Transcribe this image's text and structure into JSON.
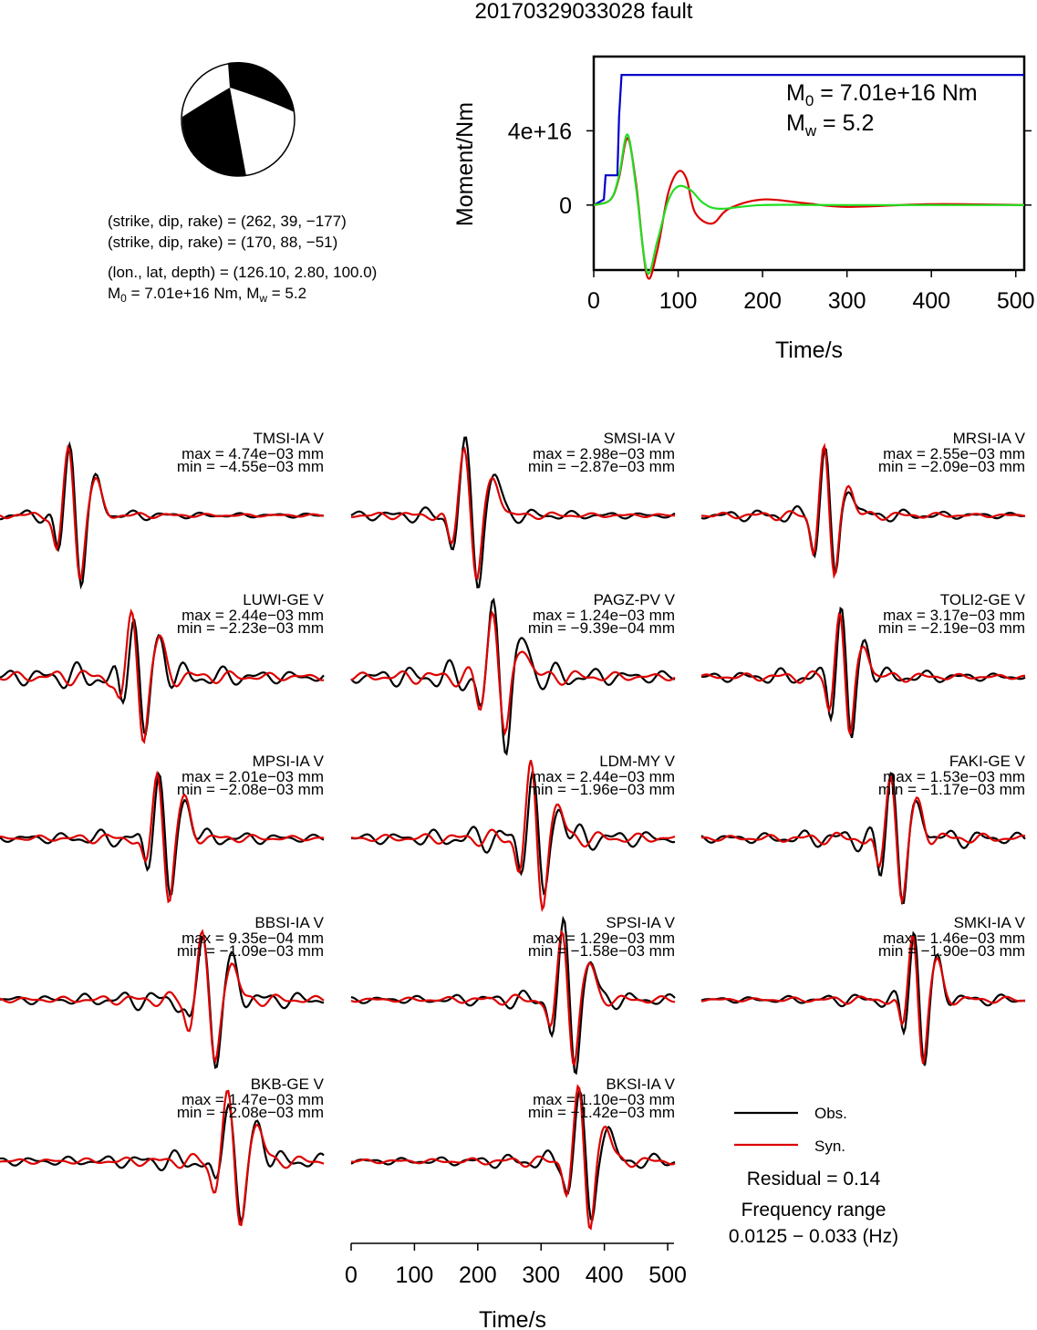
{
  "title": "20170329033028 fault",
  "beachball": {
    "line1": "(strike, dip, rake) = (262, 39, −177)",
    "line2": "(strike, dip, rake) = (170, 88, −51)",
    "line3": "(lon., lat, depth) = (126.10, 2.80, 100.0)",
    "line4_pre": "M",
    "line4_sub": "0",
    "line4_post": " = 7.01e+16 Nm, M",
    "line4_sub2": "w",
    "line4_end": " = 5.2"
  },
  "moment_chart": {
    "ylabel": "Moment/Nm",
    "xlabel": "Time/s",
    "annotation_m0_pre": "M",
    "annotation_m0_sub": "0",
    "annotation_m0_post": " = 7.01e+16 Nm",
    "annotation_mw_pre": "M",
    "annotation_mw_sub": "w",
    "annotation_mw_post": " = 5.2",
    "yticks": [
      "0",
      "4e+16"
    ],
    "xticks": [
      "0",
      "100",
      "200",
      "300",
      "400",
      "500"
    ],
    "colors": {
      "cumulative": "#0000cc",
      "rate_obs": "#dd0000",
      "rate_model": "#22dd22"
    }
  },
  "chart_data": [
    {
      "type": "line",
      "title": "",
      "xlabel": "Time/s",
      "ylabel": "Moment/Nm",
      "xlim": [
        0,
        510
      ],
      "ylim": [
        -3.5e+16,
        8e+16
      ],
      "series": [
        {
          "x": [
            0,
            12,
            14,
            28,
            30,
            33,
            510
          ],
          "y": [
            0,
            3000000000000000.0,
            1.6e+16,
            1.6e+16,
            4.8e+16,
            7.01e+16,
            7.01e+16
          ]
        },
        {
          "x": [
            0,
            20,
            30,
            40,
            50,
            63,
            75,
            88,
            100,
            110,
            120,
            140,
            160,
            200,
            250,
            300,
            400,
            510
          ],
          "y": [
            0,
            3000000000000000.0,
            1.5e+16,
            3.6e+16,
            1.2e+16,
            -3.8e+16,
            -2.5e+16,
            6000000000000000.0,
            1.8e+16,
            1.4e+16,
            -4000000000000000.0,
            -1e+16,
            -2000000000000000.0,
            3000000000000000.0,
            1000000000000000.0,
            -1000000000000000.0,
            500000000000000.0,
            0
          ]
        },
        {
          "x": [
            0,
            20,
            30,
            40,
            50,
            63,
            75,
            88,
            100,
            115,
            130,
            150,
            200,
            300,
            510
          ],
          "y": [
            0,
            3000000000000000.0,
            1.6e+16,
            3.8e+16,
            1e+16,
            -3.6e+16,
            -2e+16,
            2000000000000000.0,
            1e+16,
            8000000000000000.0,
            1000000000000000.0,
            -2000000000000000.0,
            0,
            0,
            0
          ]
        }
      ]
    },
    {
      "type": "line",
      "xlabel": "Time/s",
      "xlim": [
        0,
        510
      ],
      "series": [
        {
          "name": "Obs.",
          "color": "#000000"
        },
        {
          "name": "Syn.",
          "color": "#dd0000"
        }
      ]
    }
  ],
  "waveforms": [
    {
      "name": "TMSI-IA V",
      "max": "max = 4.74e−03 mm",
      "min": "min = −4.55e−03 mm",
      "peak": 110,
      "sd": 20,
      "pre": 0.6,
      "post": 0.5,
      "noise": 0.08
    },
    {
      "name": "SMSI-IA V",
      "max": "max = 2.98e−03 mm",
      "min": "min = −2.87e−03 mm",
      "peak": 180,
      "sd": 22,
      "pre": 0.5,
      "post": 0.55,
      "noise": 0.1
    },
    {
      "name": "MRSI-IA V",
      "max": "max = 2.55e−03 mm",
      "min": "min = −2.09e−03 mm",
      "peak": 195,
      "sd": 18,
      "pre": 0.6,
      "post": 0.45,
      "noise": 0.1
    },
    {
      "name": "LUWI-GE V",
      "max": "max = 2.44e−03 mm",
      "min": "min = −2.23e−03 mm",
      "peak": 210,
      "sd": 20,
      "pre": 0.5,
      "post": 0.5,
      "noise": 0.2
    },
    {
      "name": "PAGZ-PV V",
      "max": "max = 1.24e−03 mm",
      "min": "min = −9.39e−04 mm",
      "peak": 225,
      "sd": 22,
      "pre": 0.5,
      "post": 0.5,
      "noise": 0.2
    },
    {
      "name": "TOLI2-GE V",
      "max": "max = 3.17e−03 mm",
      "min": "min = −2.19e−03 mm",
      "peak": 220,
      "sd": 18,
      "pre": 0.55,
      "post": 0.5,
      "noise": 0.12
    },
    {
      "name": "MPSI-IA V",
      "max": "max = 2.01e−03 mm",
      "min": "min = −2.08e−03 mm",
      "peak": 250,
      "sd": 20,
      "pre": 0.5,
      "post": 0.55,
      "noise": 0.12
    },
    {
      "name": "LDM-MY V",
      "max": "max = 2.44e−03 mm",
      "min": "min = −1.96e−03 mm",
      "peak": 285,
      "sd": 20,
      "pre": 0.5,
      "post": 0.45,
      "noise": 0.18
    },
    {
      "name": "FAKI-GE V",
      "max": "max = 1.53e−03 mm",
      "min": "min = −1.17e−03 mm",
      "peak": 300,
      "sd": 20,
      "pre": 0.6,
      "post": 0.5,
      "noise": 0.15
    },
    {
      "name": "BBSI-IA V",
      "max": "max = 9.35e−04 mm",
      "min": "min = −1.09e−03 mm",
      "peak": 320,
      "sd": 22,
      "pre": 0.5,
      "post": 0.5,
      "noise": 0.15
    },
    {
      "name": "SPSI-IA V",
      "max": "max = 1.29e−03 mm",
      "min": "min = −1.58e−03 mm",
      "peak": 335,
      "sd": 20,
      "pre": 0.5,
      "post": 0.5,
      "noise": 0.12
    },
    {
      "name": "SMKI-IA V",
      "max": "max = 1.46e−03 mm",
      "min": "min = −1.90e−03 mm",
      "peak": 335,
      "sd": 18,
      "pre": 0.5,
      "post": 0.55,
      "noise": 0.1
    },
    {
      "name": "BKB-GE V",
      "max": "max = 1.47e−03 mm",
      "min": "min = −2.08e−03 mm",
      "peak": 360,
      "sd": 22,
      "pre": 0.5,
      "post": 0.5,
      "noise": 0.15
    },
    {
      "name": "BKSI-IA V",
      "max": "max = 1.10e−03 mm",
      "min": "min = −1.42e−03 mm",
      "peak": 360,
      "sd": 20,
      "pre": 0.5,
      "post": 0.5,
      "noise": 0.12
    }
  ],
  "waveform_axis": {
    "xlabel": "Time/s",
    "xticks": [
      "0",
      "100",
      "200",
      "300",
      "400",
      "500"
    ]
  },
  "legend": {
    "obs_label": "Obs.",
    "syn_label": "Syn.",
    "residual": "Residual = 0.14",
    "freq_title": "Frequency range",
    "freq_value": "0.0125 − 0.033 (Hz)",
    "obs_color": "#000000",
    "syn_color": "#dd0000"
  }
}
